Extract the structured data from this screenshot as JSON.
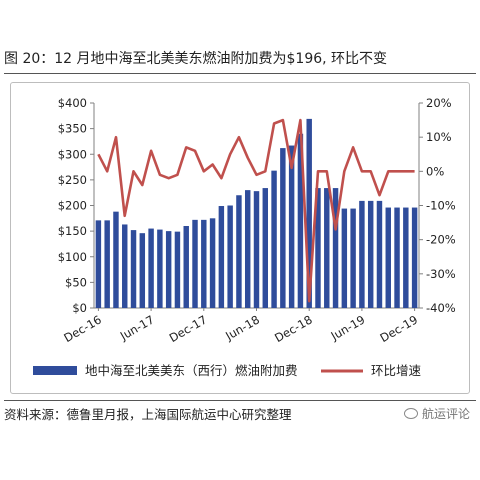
{
  "header": {
    "title": "图 20：12 月地中海至北美美东燃油附加费为$196, 环比不变"
  },
  "source": {
    "text": "资料来源：德鲁里月报，上海国际航运中心研究整理",
    "watermark": "航运评论"
  },
  "colors": {
    "bar": "#2F4C9B",
    "line": "#C0504D",
    "axis": "#808080"
  },
  "chart_data": {
    "type": "bar+line",
    "categories": [
      "Dec-16",
      "Jan-17",
      "Feb-17",
      "Mar-17",
      "Apr-17",
      "May-17",
      "Jun-17",
      "Jul-17",
      "Aug-17",
      "Sep-17",
      "Oct-17",
      "Nov-17",
      "Dec-17",
      "Jan-18",
      "Feb-18",
      "Mar-18",
      "Apr-18",
      "May-18",
      "Jun-18",
      "Jul-18",
      "Aug-18",
      "Sep-18",
      "Oct-18",
      "Nov-18",
      "Dec-18",
      "Jan-19",
      "Feb-19",
      "Mar-19",
      "Apr-19",
      "May-19",
      "Jun-19",
      "Jul-19",
      "Aug-19",
      "Sep-19",
      "Oct-19",
      "Nov-19",
      "Dec-19"
    ],
    "x_tick_labels": [
      "Dec-16",
      "Jun-17",
      "Dec-17",
      "Jun-18",
      "Dec-18",
      "Jun-19",
      "Dec-19"
    ],
    "x_tick_indices": [
      0,
      6,
      12,
      18,
      24,
      30,
      36
    ],
    "series": [
      {
        "name": "地中海至北美美东（西行）燃油附加费",
        "type": "bar",
        "axis": "left",
        "values": [
          171,
          171,
          188,
          163,
          152,
          146,
          155,
          153,
          150,
          149,
          160,
          172,
          172,
          175,
          199,
          200,
          220,
          230,
          228,
          234,
          268,
          312,
          317,
          340,
          369,
          234,
          234,
          234,
          194,
          194,
          209,
          209,
          209,
          196,
          196,
          196,
          196
        ]
      },
      {
        "name": "环比增速",
        "type": "line",
        "axis": "right",
        "values": [
          5,
          0,
          10,
          -13,
          0,
          -4,
          6,
          -1,
          -2,
          -1,
          7,
          6,
          0,
          2,
          -2,
          5,
          10,
          4,
          -1,
          0,
          14,
          15,
          1,
          15,
          -38,
          0,
          0,
          -17,
          0,
          7,
          0,
          0,
          -7,
          0,
          0,
          0,
          0
        ]
      }
    ],
    "y_left": {
      "ticks": [
        "$0",
        "$50",
        "$100",
        "$150",
        "$200",
        "$250",
        "$300",
        "$350",
        "$400"
      ],
      "lim": [
        0,
        400
      ]
    },
    "y_right": {
      "ticks": [
        "-40%",
        "-30%",
        "-20%",
        "-10%",
        "0%",
        "10%",
        "20%"
      ],
      "lim": [
        -40,
        20
      ]
    },
    "legend": {
      "placement": "bottom"
    },
    "grid": false
  }
}
